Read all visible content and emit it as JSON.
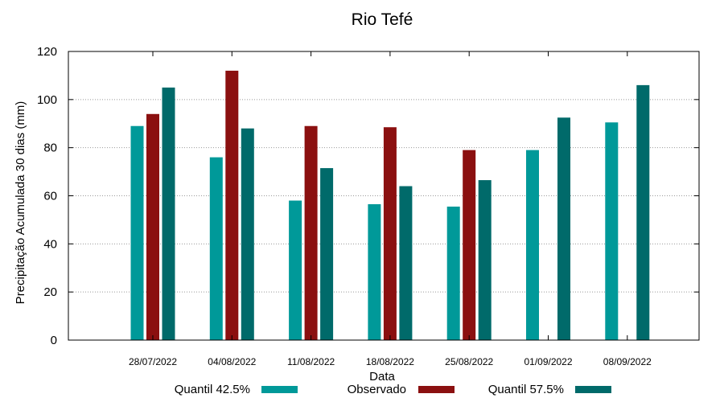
{
  "chart_data": {
    "type": "bar",
    "title": "Rio Tefé",
    "xlabel": "Data",
    "ylabel": "Precipitação Acumulada 30 dias (mm)",
    "ylim": [
      0,
      120
    ],
    "yticks": [
      0,
      20,
      40,
      60,
      80,
      100,
      120
    ],
    "grid": true,
    "legend_position": "bottom",
    "categories": [
      "28/07/2022",
      "04/08/2022",
      "11/08/2022",
      "18/08/2022",
      "25/08/2022",
      "01/09/2022",
      "08/09/2022"
    ],
    "series": [
      {
        "name": "Quantil 42.5%",
        "color": "#009999",
        "values": [
          89,
          76,
          58,
          56.5,
          55.5,
          79,
          90.5
        ]
      },
      {
        "name": "Observado",
        "color": "#8b1010",
        "values": [
          94,
          112,
          89,
          88.5,
          79,
          null,
          null
        ]
      },
      {
        "name": "Quantil 57.5%",
        "color": "#006a6a",
        "values": [
          105,
          88,
          71.5,
          64,
          66.5,
          92.5,
          106
        ]
      }
    ]
  }
}
